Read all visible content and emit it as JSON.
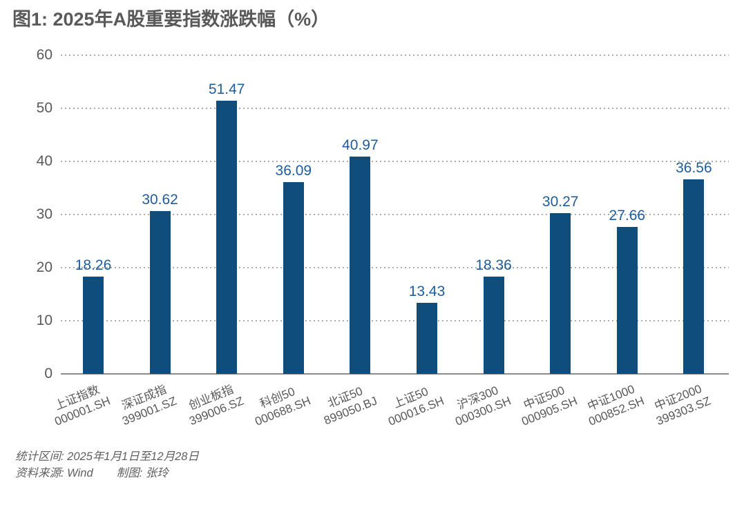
{
  "title": "图1: 2025年A股重要指数涨跌幅（%）",
  "chart_data": {
    "type": "bar",
    "title": "图1: 2025年A股重要指数涨跌幅（%）",
    "categories": [
      {
        "name": "上证指数",
        "code": "000001.SH"
      },
      {
        "name": "深证成指",
        "code": "399001.SZ"
      },
      {
        "name": "创业板指",
        "code": "399006.SZ"
      },
      {
        "name": "科创50",
        "code": "000688.SH"
      },
      {
        "name": "北证50",
        "code": "899050.BJ"
      },
      {
        "name": "上证50",
        "code": "000016.SH"
      },
      {
        "name": "沪深300",
        "code": "000300.SH"
      },
      {
        "name": "中证500",
        "code": "000905.SH"
      },
      {
        "name": "中证1000",
        "code": "000852.SH"
      },
      {
        "name": "中证2000",
        "code": "399303.SZ"
      }
    ],
    "values": [
      18.26,
      30.62,
      51.47,
      36.09,
      40.97,
      13.43,
      18.36,
      30.27,
      27.66,
      36.56
    ],
    "value_labels": [
      "18.26",
      "30.62",
      "51.47",
      "36.09",
      "40.97",
      "13.43",
      "18.36",
      "30.27",
      "27.66",
      "36.56"
    ],
    "xlabel": "",
    "ylabel": "",
    "ylim": [
      0,
      60
    ],
    "yticks": [
      0,
      10,
      20,
      30,
      40,
      50,
      60
    ],
    "grid": "horizontal-dotted",
    "legend": "none",
    "colors": {
      "bar": "#0F4D7D",
      "value_label": "#1E5C99",
      "axis_text": "#595959",
      "gridline": "#ababab",
      "axis_line": "#8c8c8c"
    }
  },
  "footer": {
    "period_note": "统计区间: 2025年1月1日至12月28日",
    "source_note": "资料来源: Wind",
    "credit_note": "制图: 张玲"
  }
}
